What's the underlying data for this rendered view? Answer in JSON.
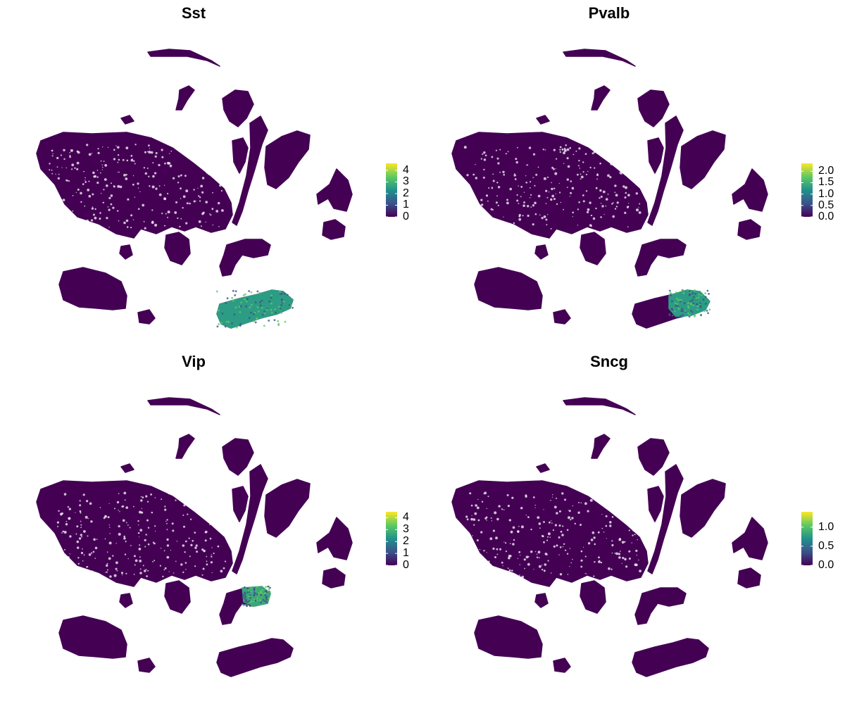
{
  "chart_data": [
    {
      "type": "scatter",
      "title": "Sst",
      "embedding": "umap",
      "axes_visible": false,
      "grid": false,
      "legend_placement": "right",
      "colormap": [
        "#440154",
        "#3b528b",
        "#21918c",
        "#5ec962",
        "#fde725"
      ],
      "background_color": "#440154",
      "color_range": [
        0,
        4.6
      ],
      "ticks": [
        0,
        1,
        2,
        3,
        4
      ],
      "tick_labels": [
        "0",
        "1",
        "2",
        "3",
        "4"
      ],
      "highlight_cluster": "C11",
      "highlight_level": 0.55
    },
    {
      "type": "scatter",
      "title": "Pvalb",
      "embedding": "umap",
      "axes_visible": false,
      "grid": false,
      "legend_placement": "right",
      "colormap": [
        "#440154",
        "#3b528b",
        "#21918c",
        "#5ec962",
        "#fde725"
      ],
      "background_color": "#440154",
      "color_range": [
        0,
        2.35
      ],
      "ticks": [
        0,
        0.5,
        1,
        1.5,
        2
      ],
      "tick_labels": [
        "0.0",
        "0.5",
        "1.0",
        "1.5",
        "2.0"
      ],
      "highlight_cluster": "C11-east",
      "highlight_level": 0.55
    },
    {
      "type": "scatter",
      "title": "Vip",
      "embedding": "umap",
      "axes_visible": false,
      "grid": false,
      "legend_placement": "right",
      "colormap": [
        "#440154",
        "#3b528b",
        "#21918c",
        "#5ec962",
        "#fde725"
      ],
      "background_color": "#440154",
      "color_range": [
        0,
        4.5
      ],
      "ticks": [
        0,
        1,
        2,
        3,
        4
      ],
      "tick_labels": [
        "0",
        "1",
        "2",
        "3",
        "4"
      ],
      "highlight_cluster": "C8-east",
      "highlight_level": 0.6
    },
    {
      "type": "scatter",
      "title": "Sncg",
      "embedding": "umap",
      "axes_visible": false,
      "grid": false,
      "legend_placement": "right",
      "colormap": [
        "#440154",
        "#3b528b",
        "#21918c",
        "#5ec962",
        "#fde725"
      ],
      "background_color": "#440154",
      "color_range": [
        0,
        1.4
      ],
      "ticks": [
        0,
        0.5,
        1
      ],
      "tick_labels": [
        "0.0",
        "0.5",
        "1.0"
      ],
      "highlight_cluster": "",
      "highlight_level": 0
    }
  ]
}
